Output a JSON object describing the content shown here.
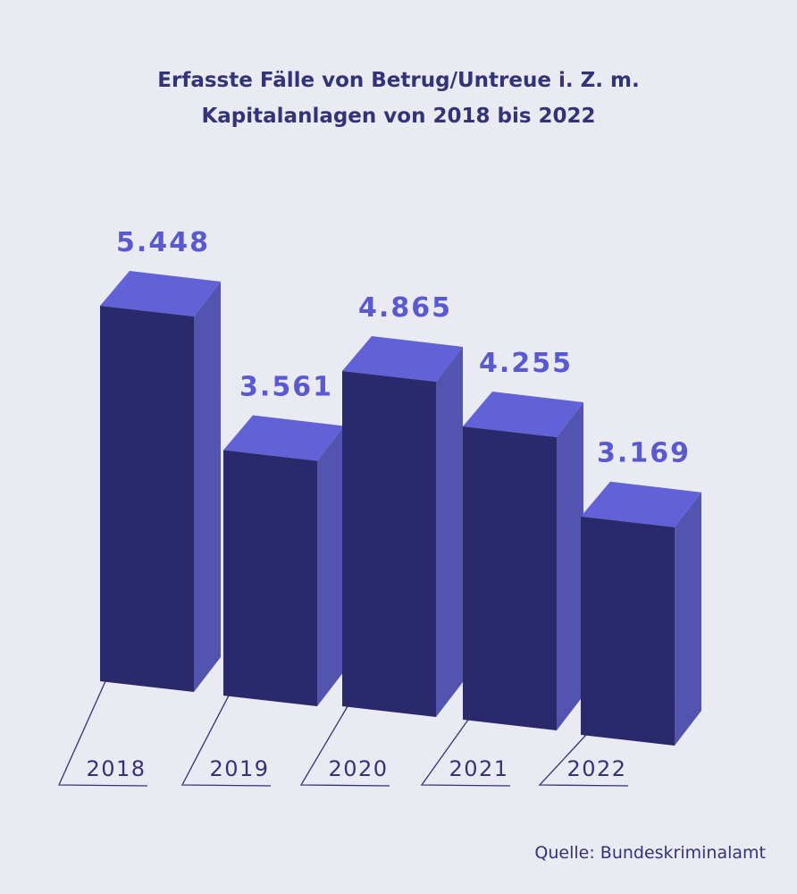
{
  "colors": {
    "background": "#eaeaf3",
    "front": "#29296c",
    "top": "#6262d8",
    "side": "#5353b0",
    "text": "#33337a",
    "value_label": "#5a5ad0"
  },
  "chart_data": {
    "type": "bar",
    "title_lines": [
      "Erfasste Fälle von Betrug/Untreue i. Z. m.",
      "Kapitalanlagen von 2018 bis 2022"
    ],
    "categories": [
      "2018",
      "2019",
      "2020",
      "2021",
      "2022"
    ],
    "values": [
      5448,
      3561,
      4865,
      4255,
      3169
    ],
    "value_labels": [
      "5.448",
      "3.561",
      "4.865",
      "4.255",
      "3.169"
    ],
    "style": "3d-bar",
    "grid": false,
    "source": "Quelle: Bundeskriminalamt"
  }
}
